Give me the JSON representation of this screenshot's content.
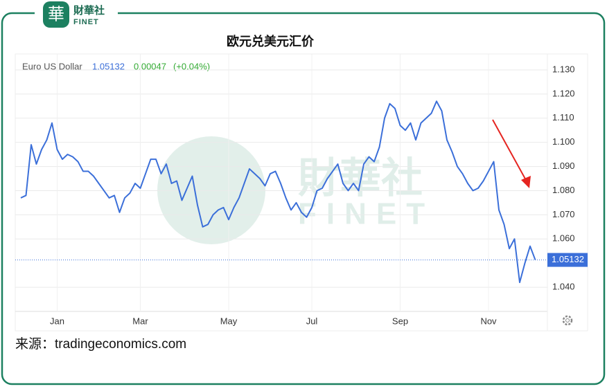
{
  "brand": {
    "name": "財華社",
    "latin": "FINET"
  },
  "source": "来源：tradingeconomics.com",
  "chart_data": {
    "type": "line",
    "title": "欧元兑美元汇价",
    "legend": {
      "name": "Euro US Dollar",
      "last": "1.05132",
      "change": "0.00047",
      "change_pct": "(+0.04%)"
    },
    "categories": [
      null,
      null,
      null,
      null,
      null,
      null,
      null,
      "Jan",
      null,
      null,
      null,
      null,
      null,
      null,
      null,
      null,
      null,
      null,
      null,
      null,
      null,
      null,
      null,
      "Mar",
      null,
      null,
      null,
      null,
      null,
      null,
      null,
      null,
      null,
      null,
      null,
      null,
      null,
      null,
      null,
      null,
      "May",
      null,
      null,
      null,
      null,
      null,
      null,
      null,
      null,
      null,
      null,
      null,
      null,
      null,
      null,
      null,
      "Jul",
      null,
      null,
      null,
      null,
      null,
      null,
      null,
      null,
      null,
      null,
      null,
      null,
      null,
      null,
      null,
      null,
      "Sep",
      null,
      null,
      null,
      null,
      null,
      null,
      null,
      null,
      null,
      null,
      null,
      null,
      null,
      null,
      null,
      null,
      "Nov",
      null,
      null,
      null,
      null,
      null,
      null,
      null,
      null,
      null
    ],
    "series": [
      {
        "name": "Euro US Dollar",
        "color": "#3b6fd9",
        "values": [
          1.077,
          1.078,
          1.099,
          1.091,
          1.097,
          1.101,
          1.108,
          1.097,
          1.093,
          1.095,
          1.094,
          1.092,
          1.088,
          1.088,
          1.086,
          1.083,
          1.08,
          1.077,
          1.078,
          1.071,
          1.077,
          1.079,
          1.083,
          1.081,
          1.087,
          1.093,
          1.093,
          1.087,
          1.091,
          1.083,
          1.084,
          1.076,
          1.081,
          1.086,
          1.074,
          1.065,
          1.066,
          1.07,
          1.072,
          1.073,
          1.068,
          1.073,
          1.077,
          1.083,
          1.089,
          1.087,
          1.085,
          1.082,
          1.087,
          1.088,
          1.083,
          1.077,
          1.072,
          1.075,
          1.071,
          1.069,
          1.073,
          1.08,
          1.081,
          1.085,
          1.088,
          1.091,
          1.083,
          1.08,
          1.083,
          1.08,
          1.091,
          1.094,
          1.092,
          1.098,
          1.11,
          1.116,
          1.114,
          1.107,
          1.105,
          1.108,
          1.101,
          1.108,
          1.11,
          1.112,
          1.117,
          1.113,
          1.101,
          1.096,
          1.09,
          1.087,
          1.083,
          1.08,
          1.081,
          1.084,
          1.088,
          1.092,
          1.072,
          1.066,
          1.056,
          1.06,
          1.042,
          1.05,
          1.057,
          1.05132
        ]
      }
    ],
    "ylim": [
      1.03,
      1.136
    ],
    "yticks": [
      {
        "value": 1.13,
        "label": "1.130"
      },
      {
        "value": 1.12,
        "label": "1.120"
      },
      {
        "value": 1.11,
        "label": "1.110"
      },
      {
        "value": 1.1,
        "label": "1.100"
      },
      {
        "value": 1.09,
        "label": "1.090"
      },
      {
        "value": 1.08,
        "label": "1.080"
      },
      {
        "value": 1.07,
        "label": "1.070"
      },
      {
        "value": 1.06,
        "label": "1.060"
      },
      {
        "value": 1.04,
        "label": "1.040"
      }
    ],
    "grid": true
  }
}
